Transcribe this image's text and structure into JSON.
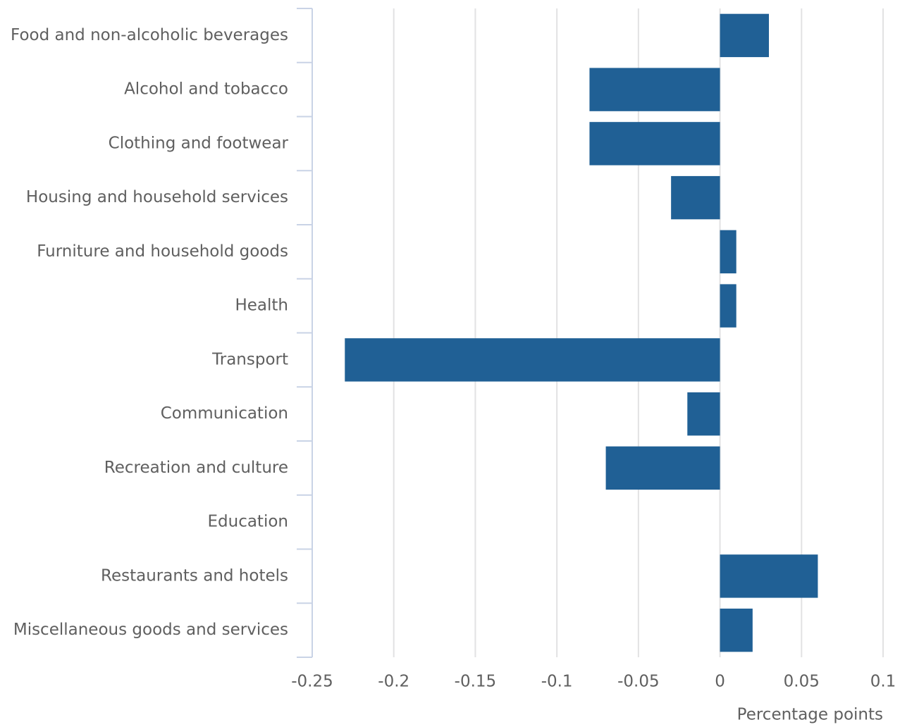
{
  "chart_data": {
    "type": "hbar",
    "categories": [
      "Food and non-alcoholic beverages",
      "Alcohol and tobacco",
      "Clothing and footwear",
      "Housing and household services",
      "Furniture and household goods",
      "Health",
      "Transport",
      "Communication",
      "Recreation and culture",
      "Education",
      "Restaurants and hotels",
      "Miscellaneous goods and services"
    ],
    "values": [
      0.03,
      -0.08,
      -0.08,
      -0.03,
      0.01,
      0.01,
      -0.23,
      -0.02,
      -0.07,
      0,
      0.06,
      0.02
    ],
    "color": "#206095",
    "x_label": "Percentage points",
    "xlim": [
      -0.25,
      0.1
    ],
    "xticks": [
      -0.25,
      -0.2,
      -0.15,
      -0.1,
      -0.05,
      0,
      0.05,
      0.1
    ],
    "grid": true
  }
}
